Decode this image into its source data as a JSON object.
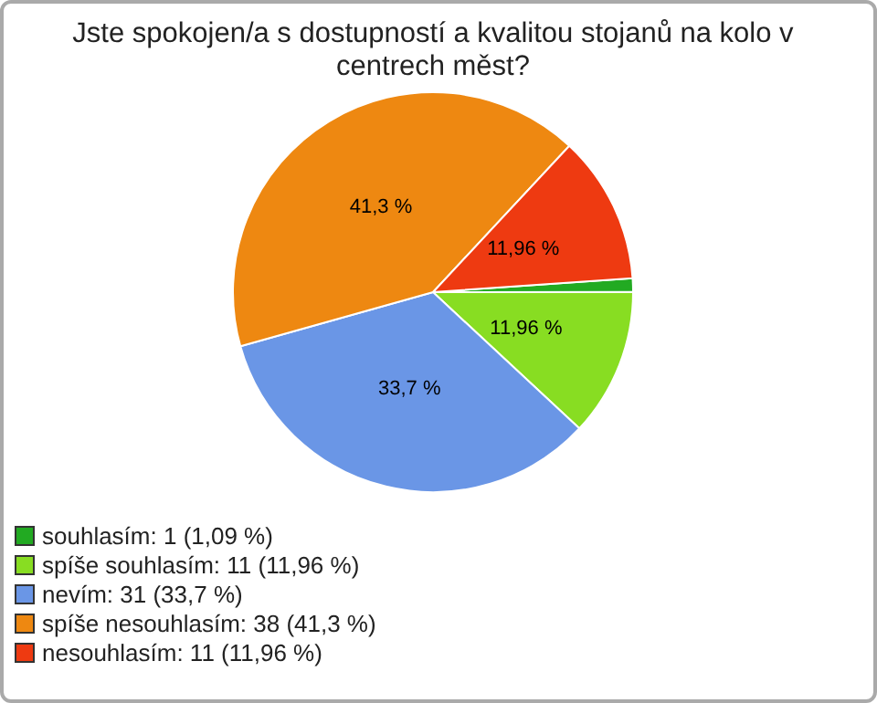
{
  "chart_data": {
    "type": "pie",
    "title": "Jste spokojen/a s dostupností a kvalitou stojanů na kolo v centrech měst?",
    "categories": [
      "souhlasím: 1 (1,09 %)",
      "spíše souhlasím: 11 (11,96 %)",
      "nevím: 31 (33,7 %)",
      "spíše nesouhlasím: 38 (41,3 %)",
      "nesouhlasím: 11 (11,96 %)"
    ],
    "values": [
      1.09,
      11.96,
      33.7,
      41.3,
      11.96
    ],
    "value_labels": [
      null,
      "11,96 %",
      "33,7 %",
      "41,3 %",
      "11,96 %"
    ],
    "colors": [
      "#22aa22",
      "#88dd22",
      "#6a96e6",
      "#ee8811",
      "#ee3a11"
    ],
    "legend": "bottom left"
  }
}
